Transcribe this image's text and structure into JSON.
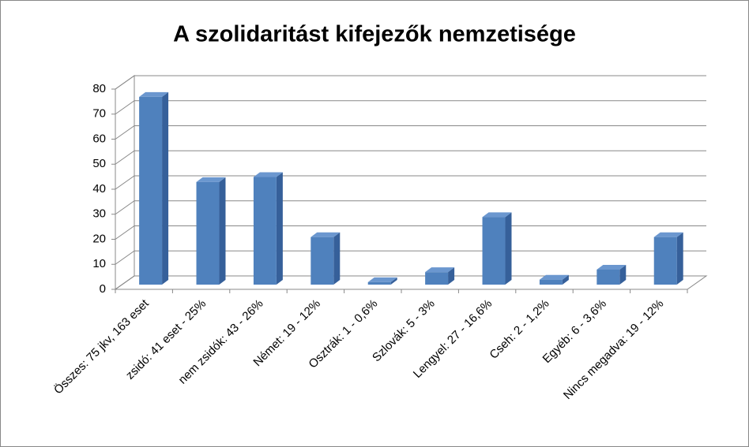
{
  "chart_data": {
    "type": "bar3d",
    "title": "A szolidaritást kifejezők nemzetisége",
    "categories": [
      "Összes: 75 jkv, 163 eset",
      "zsidó: 41 eset - 25%",
      "nem zsidók: 43 - 26%",
      "Német: 19 - 12%",
      "Osztrák: 1 - 0,6%",
      "Szlovák: 5 - 3%",
      "Lengyel: 27 - 16,6%",
      "Cseh: 2 - 1,2%",
      "Egyéb: 6 - 3,6%",
      "Nincs megadva: 19 - 12%"
    ],
    "values": [
      75,
      41,
      43,
      19,
      1,
      5,
      27,
      2,
      6,
      19
    ],
    "color": "#4f81bd",
    "ylim": [
      0,
      80
    ],
    "yticks": [
      0,
      10,
      20,
      30,
      40,
      50,
      60,
      70,
      80
    ],
    "grid": true
  }
}
